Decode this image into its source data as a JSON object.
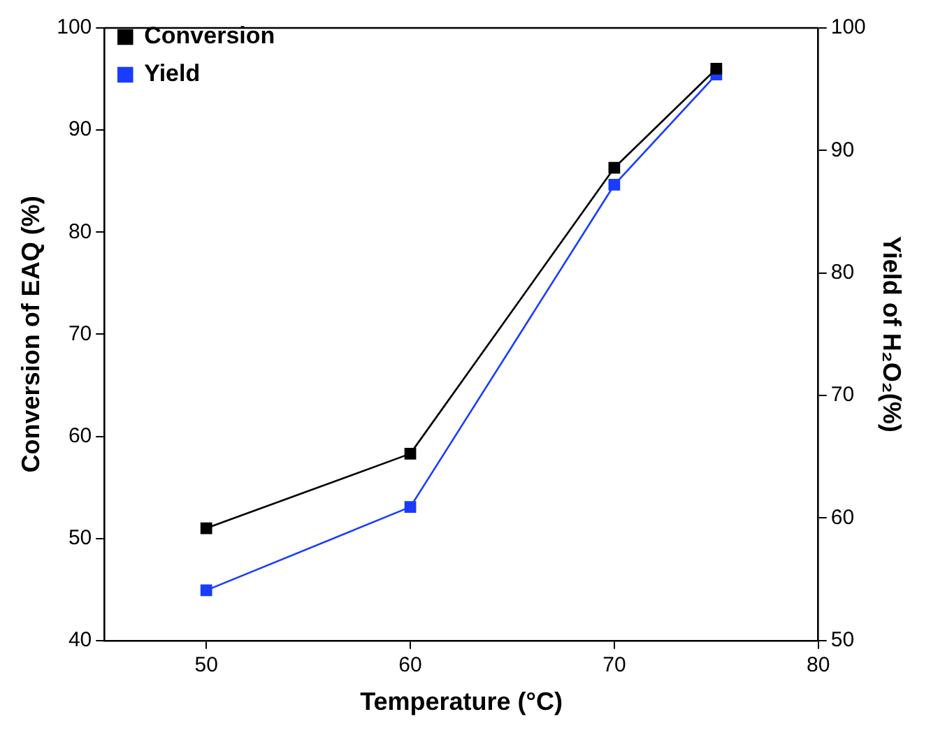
{
  "chart_data": {
    "type": "line",
    "xlabel": "Temperature (°C)",
    "ylabel": "Conversion of EAQ (%)",
    "y2label": "Yield of H₂O₂(%)",
    "x": [
      50,
      60,
      70,
      75
    ],
    "series": [
      {
        "name": "Conversion",
        "color": "#000000",
        "values": [
          51.0,
          58.3,
          86.3,
          96.0
        ]
      },
      {
        "name": "Yield",
        "color": "#1a3cff",
        "values": [
          54.1,
          60.9,
          87.2,
          96.2
        ],
        "axis": "y2"
      }
    ],
    "xlim": [
      45,
      80
    ],
    "xticks": [
      50,
      60,
      70,
      80
    ],
    "ylim": [
      40,
      100
    ],
    "yticks": [
      40,
      50,
      60,
      70,
      80,
      90,
      100
    ],
    "y2lim": [
      50,
      100
    ],
    "y2ticks": [
      50,
      60,
      70,
      80,
      90,
      100
    ],
    "marker": "square",
    "line_style": "solid",
    "legend": "top left",
    "grid": false
  }
}
